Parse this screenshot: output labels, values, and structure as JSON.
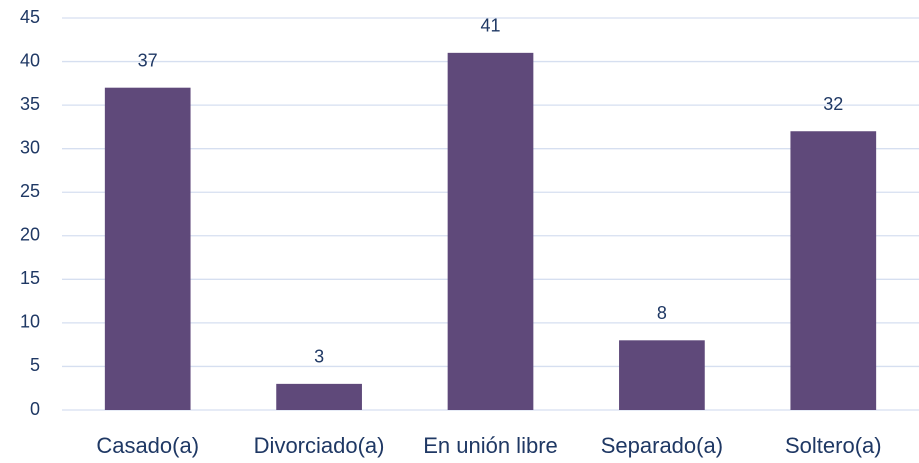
{
  "chart_data": {
    "type": "bar",
    "categories": [
      "Casado(a)",
      "Divorciado(a)",
      "En unión libre",
      "Separado(a)",
      "Soltero(a)"
    ],
    "values": [
      37,
      3,
      41,
      8,
      32
    ],
    "color": "#5f497a",
    "ylim": [
      0,
      45
    ],
    "yticks": [
      0,
      5,
      10,
      15,
      20,
      25,
      30,
      35,
      40,
      45
    ],
    "grid": true
  }
}
